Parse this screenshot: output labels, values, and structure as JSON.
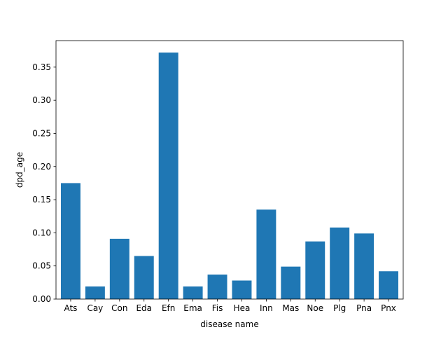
{
  "chart_data": {
    "type": "bar",
    "title": "",
    "xlabel": "disease name",
    "ylabel": "dpd_age",
    "categories": [
      "Ats",
      "Cay",
      "Con",
      "Eda",
      "Efn",
      "Ema",
      "Fis",
      "Hea",
      "Inn",
      "Mas",
      "Noe",
      "Plg",
      "Pna",
      "Pnx"
    ],
    "values": [
      0.175,
      0.019,
      0.091,
      0.065,
      0.372,
      0.019,
      0.037,
      0.028,
      0.135,
      0.049,
      0.087,
      0.108,
      0.099,
      0.042
    ],
    "ylim": [
      0,
      0.39
    ],
    "yticks": [
      "0.00",
      "0.05",
      "0.10",
      "0.15",
      "0.20",
      "0.25",
      "0.30",
      "0.35"
    ],
    "ytick_values": [
      0,
      0.05,
      0.1,
      0.15,
      0.2,
      0.25,
      0.3,
      0.35
    ],
    "grid": false,
    "bar_color": "#1f77b4"
  }
}
